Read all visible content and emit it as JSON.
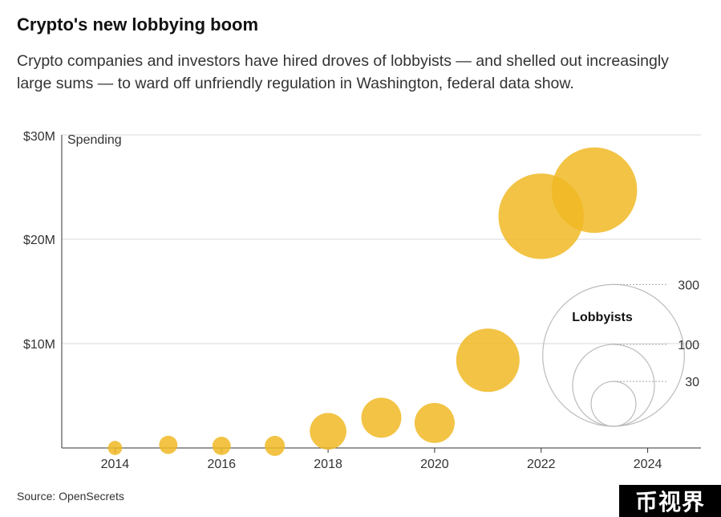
{
  "header": {
    "title": "Crypto's new lobbying boom",
    "subtitle": "Crypto companies and investors have hired droves of lobbyists — and shelled out increasingly large sums — to ward off unfriendly regulation in Washington, federal data show."
  },
  "colors": {
    "bubble": "#f0b823",
    "grid": "#d9d9d9",
    "legend_stroke": "#bbbbbb"
  },
  "chart_data": {
    "type": "scatter",
    "subtype": "bubble",
    "ylabel": "Spending",
    "ylim": [
      0,
      30
    ],
    "xlim": [
      2013,
      2025
    ],
    "y_ticks": [
      {
        "value": 10,
        "label": "$10M"
      },
      {
        "value": 20,
        "label": "$20M"
      },
      {
        "value": 30,
        "label": "$30M"
      }
    ],
    "x_ticks": [
      {
        "value": 2014,
        "label": "2014"
      },
      {
        "value": 2016,
        "label": "2016"
      },
      {
        "value": 2018,
        "label": "2018"
      },
      {
        "value": 2020,
        "label": "2020"
      },
      {
        "value": 2022,
        "label": "2022"
      },
      {
        "value": 2024,
        "label": "2024"
      }
    ],
    "points": [
      {
        "year": 2014,
        "spending_musd": 0.0,
        "lobbyists": 3
      },
      {
        "year": 2015,
        "spending_musd": 0.3,
        "lobbyists": 5
      },
      {
        "year": 2016,
        "spending_musd": 0.2,
        "lobbyists": 5
      },
      {
        "year": 2017,
        "spending_musd": 0.2,
        "lobbyists": 6
      },
      {
        "year": 2018,
        "spending_musd": 1.6,
        "lobbyists": 20
      },
      {
        "year": 2019,
        "spending_musd": 2.9,
        "lobbyists": 24
      },
      {
        "year": 2020,
        "spending_musd": 2.4,
        "lobbyists": 24
      },
      {
        "year": 2021,
        "spending_musd": 8.4,
        "lobbyists": 60
      },
      {
        "year": 2022,
        "spending_musd": 22.2,
        "lobbyists": 109
      },
      {
        "year": 2023,
        "spending_musd": 24.7,
        "lobbyists": 109
      }
    ],
    "size_legend": {
      "title": "Lobbyists",
      "values": [
        300,
        100,
        30
      ]
    }
  },
  "footer": {
    "source": "Source: OpenSecrets",
    "watermark": "币视界"
  }
}
